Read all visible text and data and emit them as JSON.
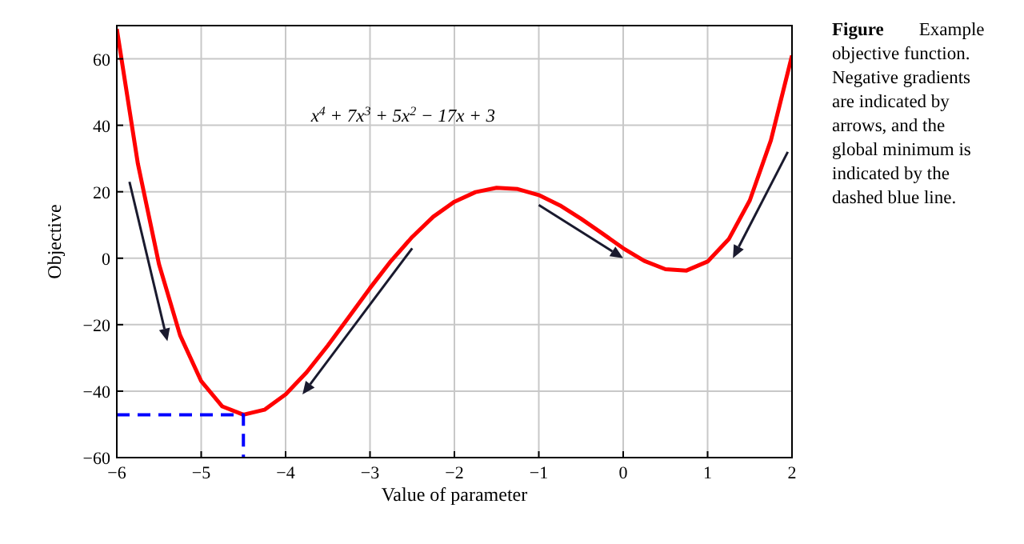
{
  "chart_data": {
    "type": "line",
    "xlabel": "Value of parameter",
    "ylabel": "Objective",
    "xlim": [
      -6,
      2
    ],
    "ylim": [
      -60,
      70
    ],
    "xticks": [
      {
        "value": -6,
        "label": "−6"
      },
      {
        "value": -5,
        "label": "−5"
      },
      {
        "value": -4,
        "label": "−4"
      },
      {
        "value": -3,
        "label": "−3"
      },
      {
        "value": -2,
        "label": "−2"
      },
      {
        "value": -1,
        "label": "−1"
      },
      0,
      1,
      2
    ],
    "yticks": [
      {
        "value": -60,
        "label": "−60"
      },
      {
        "value": -40,
        "label": "−40"
      },
      {
        "value": -20,
        "label": "−20"
      },
      0,
      20,
      40,
      60
    ],
    "grid": true,
    "marker": "none",
    "series": [
      {
        "color": "#ff0000",
        "line_style": "solid",
        "x": [
          -6,
          -5.75,
          -5.5,
          -5.25,
          -5,
          -4.75,
          -4.5,
          -4.25,
          -4,
          -3.75,
          -3.5,
          -3.25,
          -3,
          -2.75,
          -2.5,
          -2.25,
          -2,
          -1.75,
          -1.5,
          -1.25,
          -1,
          -0.75,
          -0.5,
          -0.25,
          0,
          0.25,
          0.5,
          0.75,
          1,
          1.25,
          1.5,
          1.75,
          2
        ],
        "values": [
          69,
          28.4,
          -1.8,
          -23.2,
          -37,
          -44.6,
          -47.1,
          -45.6,
          -41,
          -34.3,
          -26.3,
          -17.7,
          -9,
          -0.8,
          6.4,
          12.5,
          17,
          19.9,
          21.2,
          20.8,
          19,
          15.9,
          11.9,
          7.5,
          3,
          -0.8,
          -3.3,
          -3.7,
          -1,
          5.7,
          17.4,
          35.5,
          61
        ]
      },
      {
        "color": "#0000ff",
        "line_style": "dashed",
        "x": [
          -6,
          -4.5,
          -4.5
        ],
        "values": [
          -47.1,
          -47.1,
          -60
        ]
      }
    ],
    "annotations": [
      "x$^{4}$ + 7x$^{3}$ + 5x$^{2}$ − 17x + 3",
      "Figure Example objective function. Negative gradients are indicated by arrows, and the global minimum is indicated by the dashed blue line."
    ]
  }
}
